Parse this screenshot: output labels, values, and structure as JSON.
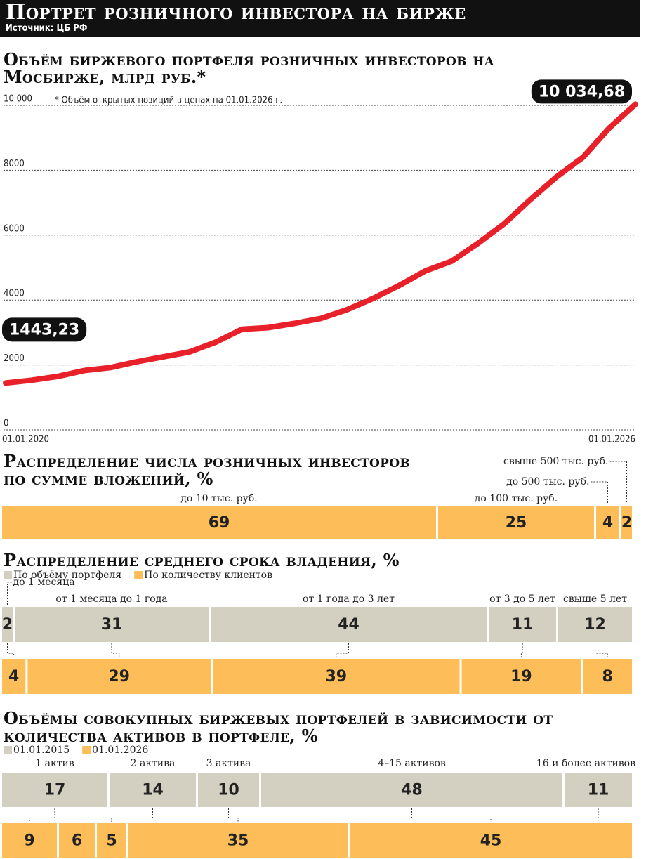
{
  "header": {
    "title": "Портрет розничного инвестора на бирже",
    "source": "Источник: ЦБ РФ"
  },
  "chart_data": [
    {
      "type": "line",
      "title": "Объём биржевого портфеля розничных инвесторов на Мосбирже, млрд руб.*",
      "note": "* Объём открытых позиций в ценах на 01.01.2026 г.",
      "categories": [
        "01.01.2020",
        null,
        null,
        null,
        null,
        null,
        null,
        null,
        null,
        null,
        null,
        null,
        null,
        null,
        null,
        null,
        null,
        null,
        null,
        null,
        null,
        null,
        null,
        null,
        "01.01.2026"
      ],
      "values": [
        1443.23,
        1530,
        1650,
        1830,
        1920,
        2100,
        2250,
        2400,
        2700,
        3100,
        3150,
        3280,
        3430,
        3700,
        4050,
        4450,
        4900,
        5200,
        5750,
        6350,
        7100,
        7800,
        8400,
        9300,
        10034.68
      ],
      "value_labels": [
        "1443,23",
        null,
        null,
        null,
        null,
        null,
        null,
        null,
        null,
        null,
        null,
        null,
        null,
        null,
        null,
        null,
        null,
        null,
        null,
        null,
        null,
        null,
        null,
        null,
        "10 034,68"
      ],
      "color": "#e8202a",
      "ylim": [
        0,
        10000
      ],
      "yticks": [
        0,
        2000,
        4000,
        6000,
        8000,
        {
          "value": 10000,
          "label": "10 000"
        }
      ],
      "grid": true
    },
    {
      "type": "stacked-bar",
      "title": "Распределение числа розничных инвесторов по сумме вложений, %",
      "categories": [
        "до 10 тыс. руб.",
        "до 100 тыс. руб.",
        "до 500 тыс. руб.",
        "свыше 500 тыс. руб."
      ],
      "values": [
        69,
        25,
        4,
        2
      ],
      "color": "#fdbe5a"
    },
    {
      "type": "stacked-bar",
      "title": "Распределение среднего срока владения, %",
      "categories": [
        "до 1 месяца",
        "от 1 месяца до 1 года",
        "от 1 года до 3 лет",
        "от 3 до 5 лет",
        "свыше 5 лет"
      ],
      "series": [
        {
          "name": "По объёму портфеля",
          "color": "#d3d0c1",
          "values": [
            2,
            31,
            44,
            11,
            12
          ]
        },
        {
          "name": "По количеству клиентов",
          "color": "#fdbe5a",
          "values": [
            4,
            29,
            39,
            19,
            8
          ]
        }
      ]
    },
    {
      "type": "stacked-bar",
      "title": "Объёмы совокупных биржевых портфелей в зависимости от количества активов в портфеле, %",
      "categories": [
        "1 актив",
        "2 актива",
        "3 актива",
        "4–15 активов",
        "16 и более активов"
      ],
      "series": [
        {
          "name": "01.01.2015",
          "color": "#d3d0c1",
          "values": [
            17,
            14,
            10,
            48,
            11
          ]
        },
        {
          "name": "01.01.2026",
          "color": "#fdbe5a",
          "values": [
            9,
            6,
            5,
            35,
            45
          ]
        }
      ]
    }
  ]
}
